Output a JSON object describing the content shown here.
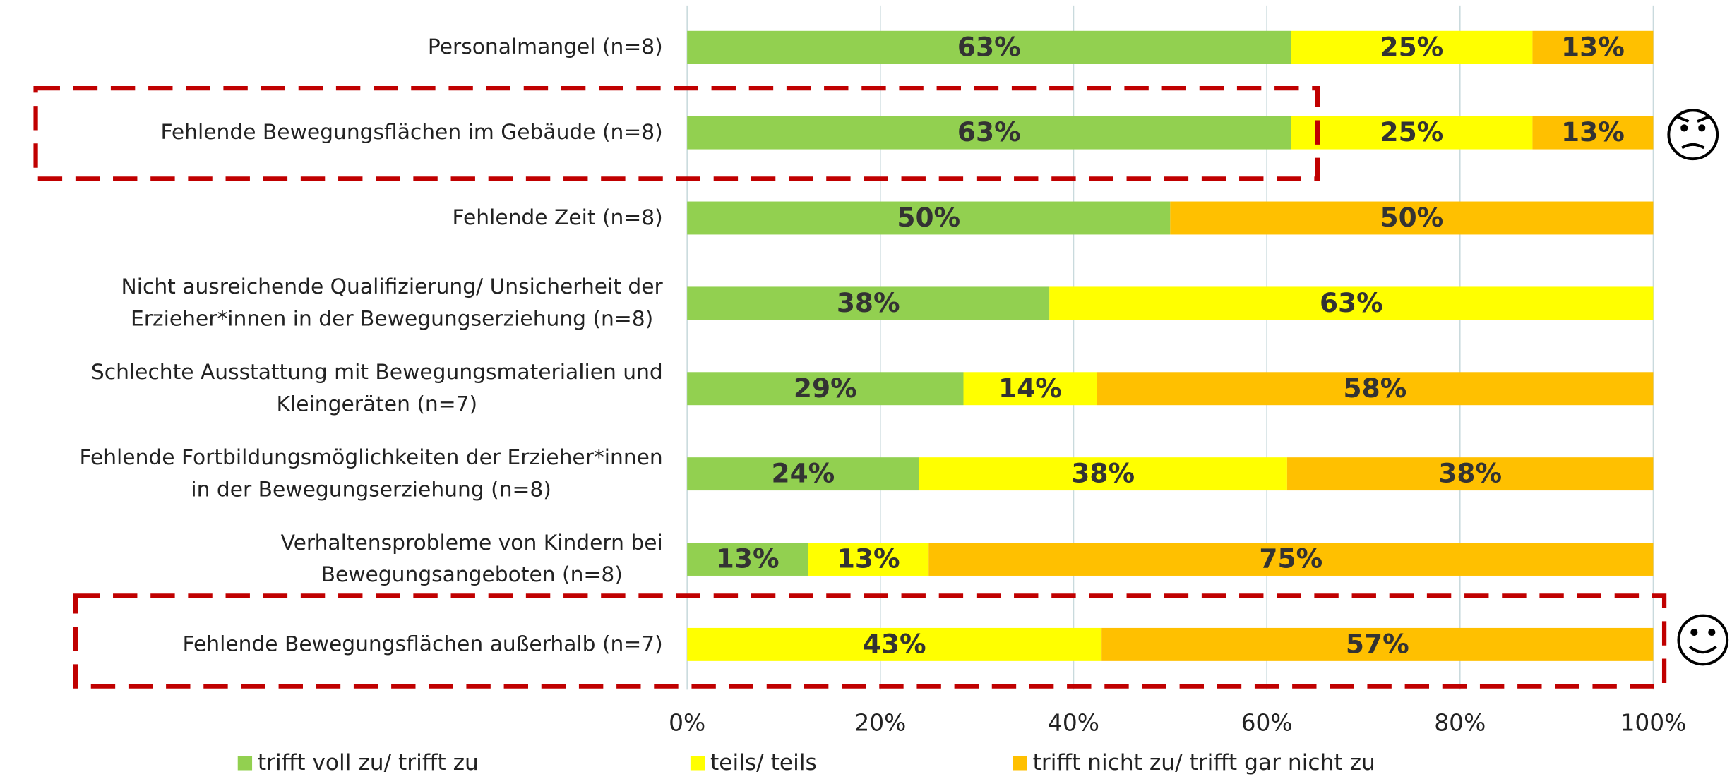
{
  "chart_data": {
    "type": "stacked_bar_horizontal",
    "categories": [
      "Personalmangel (n=8)",
      "Fehlende Bewegungsflächen im  Gebäude (n=8)",
      "Fehlende Zeit (n=8)",
      "Nicht ausreichende Qualifizierung/ Unsicherheit der\nErzieher*innen in der Bewegungserziehung (n=8)",
      "Schlechte Ausstattung mit Bewegungsmaterialien und\nKleingeräten (n=7)",
      "Fehlende Fortbildungsmöglichkeiten der Erzieher*innen\nin der Bewegungserziehung (n=8)",
      "Verhaltensprobleme von Kindern bei\nBewegungsangeboten (n=8)",
      "Fehlende Bewegungsflächen außerhalb (n=7)"
    ],
    "series": [
      {
        "name": "trifft voll zu/ trifft zu",
        "color": "#92d050",
        "values": [
          62.5,
          62.5,
          50,
          37.5,
          28.6,
          24,
          12.5,
          null
        ],
        "value_labels": [
          "63%",
          "63%",
          "50%",
          "38%",
          "29%",
          "24%",
          "13%",
          null
        ]
      },
      {
        "name": "teils/ teils",
        "color": "#ffff00",
        "values": [
          25,
          25,
          null,
          62.5,
          13.8,
          38.1,
          12.5,
          42.9
        ],
        "value_labels": [
          "25%",
          "25%",
          null,
          "63%",
          "14%",
          "38%",
          "13%",
          "43%"
        ]
      },
      {
        "name": "trifft nicht zu/ trifft gar nicht zu",
        "color": "#ffc000",
        "values": [
          12.5,
          12.5,
          50,
          null,
          57.6,
          37.9,
          75,
          57.1
        ],
        "value_labels": [
          "13%",
          "13%",
          "50%",
          null,
          "58%",
          "38%",
          "75%",
          "57%"
        ]
      }
    ],
    "xlim": [
      0,
      100
    ],
    "xticks": [
      {
        "value": 0,
        "label": "0%"
      },
      {
        "value": 20,
        "label": "20%"
      },
      {
        "value": 40,
        "label": "40%"
      },
      {
        "value": 60,
        "label": "60%"
      },
      {
        "value": 80,
        "label": "80%"
      },
      {
        "value": 100,
        "label": "100%"
      }
    ],
    "grid": true,
    "legend": "bottom"
  }
}
